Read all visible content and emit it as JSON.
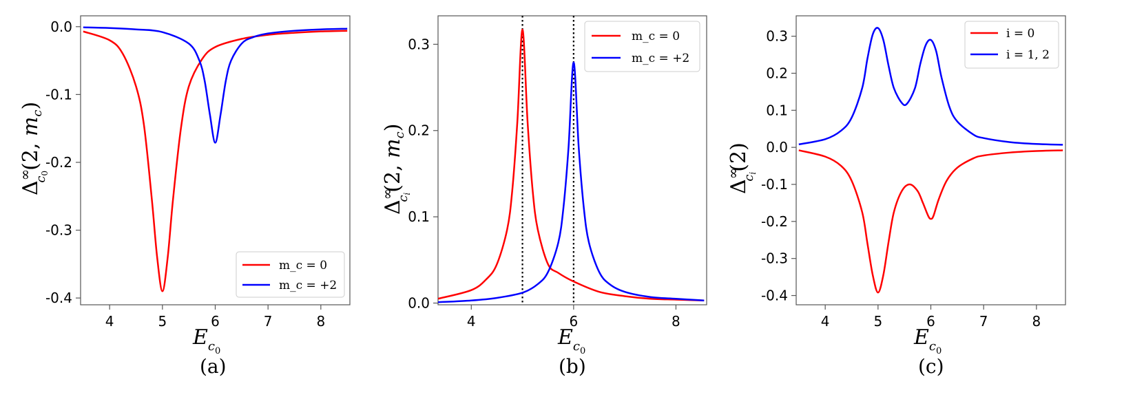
{
  "colors": {
    "red": "#ff0000",
    "blue": "#0000ff",
    "axis": "#555555",
    "vline": "#000000"
  },
  "chart_data": [
    {
      "id": "a",
      "type": "line",
      "panel_label": "(a)",
      "xlabel": "E_{c0}",
      "ylabel": "Δ^∞_{c0}(2, m_c)",
      "xlim": [
        3.45,
        8.55
      ],
      "ylim": [
        -0.41,
        0.016
      ],
      "xticks": [
        4,
        5,
        6,
        7,
        8
      ],
      "xtick_labels": [
        "4",
        "5",
        "6",
        "7",
        "8"
      ],
      "yticks": [
        0.0,
        -0.1,
        -0.2,
        -0.3,
        -0.4
      ],
      "ytick_labels": [
        "0.0",
        "-0.1",
        "-0.2",
        "-0.3",
        "-0.4"
      ],
      "legend_pos": "bottom-right",
      "vlines": [],
      "series": [
        {
          "name": "m_c = 0",
          "legend": "m_c = 0",
          "color": "#ff0000",
          "x": [
            3.5,
            4.0,
            4.25,
            4.5,
            4.65,
            4.8,
            4.9,
            5.0,
            5.1,
            5.2,
            5.35,
            5.5,
            5.75,
            6.0,
            6.5,
            7.0,
            7.5,
            8.0,
            8.5
          ],
          "y": [
            -0.007,
            -0.02,
            -0.04,
            -0.088,
            -0.145,
            -0.255,
            -0.34,
            -0.39,
            -0.34,
            -0.255,
            -0.15,
            -0.088,
            -0.048,
            -0.03,
            -0.018,
            -0.012,
            -0.009,
            -0.007,
            -0.006
          ]
        },
        {
          "name": "m_c = +2",
          "legend": "m_c = +2",
          "color": "#0000ff",
          "x": [
            3.5,
            4.0,
            4.5,
            5.0,
            5.5,
            5.7,
            5.8,
            5.9,
            6.0,
            6.1,
            6.2,
            6.3,
            6.5,
            6.7,
            7.0,
            7.5,
            8.0,
            8.5
          ],
          "y": [
            -0.001,
            -0.002,
            -0.004,
            -0.008,
            -0.025,
            -0.05,
            -0.08,
            -0.13,
            -0.171,
            -0.13,
            -0.08,
            -0.05,
            -0.025,
            -0.016,
            -0.01,
            -0.006,
            -0.004,
            -0.003
          ]
        }
      ]
    },
    {
      "id": "b",
      "type": "line",
      "panel_label": "(b)",
      "xlabel": "E_{c0}",
      "ylabel": "Δ^∞_{ci}(2, m_c)",
      "xlim": [
        3.35,
        8.6
      ],
      "ylim": [
        -0.002,
        0.333
      ],
      "xticks": [
        4,
        6,
        8
      ],
      "xtick_labels": [
        "4",
        "6",
        "8"
      ],
      "yticks": [
        0.0,
        0.1,
        0.2,
        0.3
      ],
      "ytick_labels": [
        "0.0",
        "0.1",
        "0.2",
        "0.3"
      ],
      "legend_pos": "top-right",
      "vlines": [
        5,
        6
      ],
      "series": [
        {
          "name": "m_c = 0",
          "legend": "m_c = 0",
          "color": "#ff0000",
          "x": [
            3.35,
            4.0,
            4.3,
            4.5,
            4.7,
            4.8,
            4.9,
            5.0,
            5.1,
            5.2,
            5.3,
            5.5,
            5.7,
            6.0,
            6.5,
            7.0,
            7.5,
            8.0,
            8.55
          ],
          "y": [
            0.005,
            0.015,
            0.028,
            0.045,
            0.085,
            0.13,
            0.21,
            0.317,
            0.21,
            0.13,
            0.085,
            0.045,
            0.035,
            0.025,
            0.013,
            0.008,
            0.005,
            0.004,
            0.003
          ]
        },
        {
          "name": "m_c = +2",
          "legend": "m_c = +2",
          "color": "#0000ff",
          "x": [
            3.35,
            4.0,
            4.5,
            5.0,
            5.3,
            5.5,
            5.7,
            5.8,
            5.9,
            6.0,
            6.1,
            6.2,
            6.3,
            6.5,
            6.7,
            7.0,
            7.5,
            8.0,
            8.55
          ],
          "y": [
            0.001,
            0.003,
            0.006,
            0.012,
            0.022,
            0.036,
            0.07,
            0.11,
            0.18,
            0.279,
            0.18,
            0.11,
            0.07,
            0.036,
            0.022,
            0.013,
            0.007,
            0.005,
            0.003
          ]
        }
      ]
    },
    {
      "id": "c",
      "type": "line",
      "panel_label": "(c)",
      "xlabel": "E_{c0}",
      "ylabel": "Δ^∞_{ci}(2)",
      "xlim": [
        3.45,
        8.55
      ],
      "ylim": [
        -0.425,
        0.355
      ],
      "xticks": [
        4,
        5,
        6,
        7,
        8
      ],
      "xtick_labels": [
        "4",
        "5",
        "6",
        "7",
        "8"
      ],
      "yticks": [
        0.3,
        0.2,
        0.1,
        0.0,
        -0.1,
        -0.2,
        -0.3,
        -0.4
      ],
      "ytick_labels": [
        "0.3",
        "0.2",
        "0.1",
        "0.0",
        "-0.1",
        "-0.2",
        "-0.3",
        "-0.4"
      ],
      "legend_pos": "top-right",
      "vlines": [],
      "series": [
        {
          "name": "i = 0",
          "legend": "i = 0",
          "color": "#ff0000",
          "x": [
            3.5,
            4.0,
            4.3,
            4.5,
            4.7,
            4.8,
            4.9,
            5.0,
            5.1,
            5.2,
            5.3,
            5.45,
            5.6,
            5.75,
            5.85,
            5.95,
            6.0,
            6.05,
            6.15,
            6.3,
            6.5,
            6.8,
            7.0,
            7.5,
            8.0,
            8.5
          ],
          "y": [
            -0.008,
            -0.025,
            -0.05,
            -0.09,
            -0.175,
            -0.26,
            -0.345,
            -0.392,
            -0.345,
            -0.255,
            -0.175,
            -0.118,
            -0.1,
            -0.118,
            -0.15,
            -0.185,
            -0.193,
            -0.185,
            -0.14,
            -0.09,
            -0.055,
            -0.03,
            -0.022,
            -0.014,
            -0.01,
            -0.008
          ]
        },
        {
          "name": "i = 1, 2",
          "legend": "i = 1, 2",
          "color": "#0000ff",
          "x": [
            3.5,
            4.0,
            4.3,
            4.5,
            4.7,
            4.8,
            4.9,
            5.0,
            5.1,
            5.2,
            5.3,
            5.45,
            5.55,
            5.7,
            5.8,
            5.9,
            6.0,
            6.1,
            6.2,
            6.35,
            6.5,
            6.8,
            7.0,
            7.5,
            8.0,
            8.5
          ],
          "y": [
            0.008,
            0.022,
            0.045,
            0.08,
            0.16,
            0.24,
            0.305,
            0.322,
            0.29,
            0.22,
            0.16,
            0.12,
            0.118,
            0.16,
            0.225,
            0.275,
            0.29,
            0.26,
            0.19,
            0.11,
            0.07,
            0.035,
            0.025,
            0.014,
            0.009,
            0.007
          ]
        }
      ]
    }
  ]
}
